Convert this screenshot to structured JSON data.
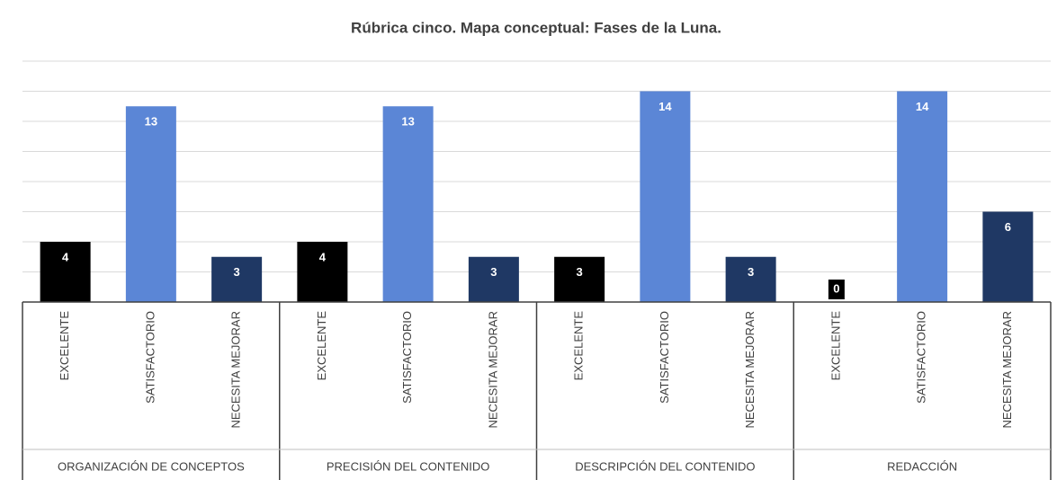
{
  "chart_data": {
    "type": "bar",
    "title": "Rúbrica cinco. Mapa conceptual: Fases de la Luna.",
    "categories": [
      "ORGANIZACIÓN DE CONCEPTOS",
      "PRECISIÓN DEL CONTENIDO",
      "DESCRIPCIÓN DEL CONTENIDO",
      "REDACCIÓN"
    ],
    "series": [
      {
        "name": "EXCELENTE",
        "color": "#000000",
        "values": [
          4,
          4,
          3,
          0
        ]
      },
      {
        "name": "SATISFACTORIO",
        "color": "#5b86d6",
        "values": [
          13,
          13,
          14,
          14
        ]
      },
      {
        "name": "NECESITA MEJORAR",
        "color": "#1f3864",
        "values": [
          3,
          3,
          3,
          6
        ]
      }
    ],
    "ylim": [
      0,
      16
    ],
    "yticks": [
      0,
      2,
      4,
      6,
      8,
      10,
      12,
      14,
      16
    ],
    "grid": true
  }
}
